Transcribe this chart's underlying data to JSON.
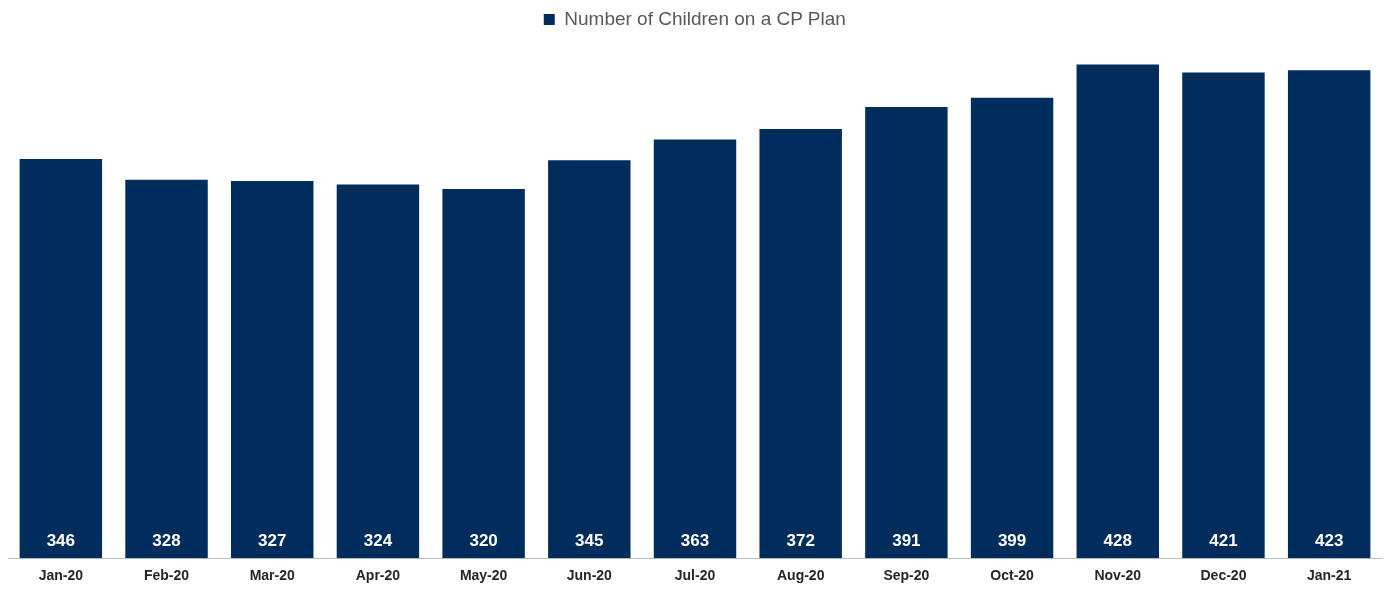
{
  "chart_data": {
    "type": "bar",
    "categories": [
      "Jan-20",
      "Feb-20",
      "Mar-20",
      "Apr-20",
      "May-20",
      "Jun-20",
      "Jul-20",
      "Aug-20",
      "Sep-20",
      "Oct-20",
      "Nov-20",
      "Dec-20",
      "Jan-21"
    ],
    "series": [
      {
        "name": "Number of Children on a CP Plan",
        "color": "#002d5c",
        "values": [
          346,
          328,
          327,
          324,
          320,
          345,
          363,
          372,
          391,
          399,
          428,
          421,
          423
        ]
      }
    ],
    "data_labels": true,
    "legend": "top",
    "grid": false,
    "tick_labels": "x"
  }
}
